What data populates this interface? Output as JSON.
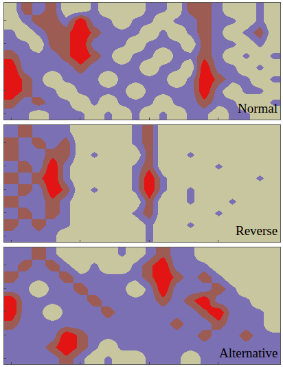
{
  "chart_data": [
    {
      "type": "heatmap",
      "annotations": [
        "Normal"
      ],
      "tick_labels": false,
      "colors": [
        "#c8c69e",
        "#7b70b4",
        "#9c5c54",
        "#e21414"
      ],
      "xlim": [
        -0.5,
        19.5
      ],
      "ylim": [
        -0.5,
        9.5
      ],
      "zlim": [
        0,
        3
      ],
      "x": [
        0,
        1,
        2,
        3,
        4,
        5,
        6,
        7,
        8,
        9,
        10,
        11,
        12,
        13,
        14,
        15,
        16,
        17,
        18,
        19
      ],
      "y": [
        9,
        8,
        7,
        6,
        5,
        4,
        3,
        2,
        1,
        0
      ],
      "cells": [
        [
          0,
          2,
          1,
          2,
          0,
          0,
          1,
          0,
          0,
          0,
          1,
          1,
          0,
          2,
          2,
          1,
          0,
          0,
          1,
          0
        ],
        [
          0,
          1,
          2,
          2,
          1,
          3,
          1,
          1,
          0,
          1,
          1,
          0,
          1,
          1,
          2,
          1,
          1,
          0,
          1,
          0
        ],
        [
          1,
          0,
          1,
          2,
          2,
          3,
          2,
          1,
          1,
          1,
          0,
          1,
          0,
          1,
          2,
          1,
          0,
          1,
          2,
          0
        ],
        [
          1,
          1,
          0,
          2,
          2,
          3,
          1,
          1,
          1,
          0,
          1,
          1,
          1,
          0,
          2,
          1,
          1,
          0,
          1,
          0
        ],
        [
          2,
          1,
          1,
          1,
          2,
          3,
          2,
          1,
          0,
          1,
          1,
          0,
          1,
          1,
          2,
          1,
          0,
          1,
          0,
          1
        ],
        [
          3,
          1,
          1,
          1,
          1,
          2,
          1,
          1,
          1,
          1,
          0,
          1,
          1,
          0,
          3,
          1,
          1,
          0,
          1,
          0
        ],
        [
          3,
          2,
          1,
          0,
          1,
          1,
          1,
          0,
          1,
          1,
          1,
          1,
          0,
          1,
          3,
          2,
          1,
          1,
          0,
          1
        ],
        [
          3,
          2,
          1,
          1,
          0,
          1,
          1,
          1,
          1,
          0,
          1,
          1,
          1,
          1,
          3,
          1,
          0,
          1,
          1,
          0
        ],
        [
          2,
          1,
          2,
          1,
          1,
          0,
          1,
          0,
          1,
          1,
          1,
          0,
          1,
          1,
          2,
          1,
          1,
          0,
          0,
          1
        ],
        [
          1,
          1,
          0,
          1,
          1,
          1,
          0,
          1,
          0,
          1,
          0,
          1,
          0,
          1,
          1,
          0,
          1,
          1,
          0,
          0
        ]
      ]
    },
    {
      "type": "heatmap",
      "annotations": [
        "Reverse"
      ],
      "tick_labels": false,
      "colors": [
        "#c8c69e",
        "#7b70b4",
        "#9c5c54",
        "#e21414"
      ],
      "xlim": [
        -0.5,
        19.5
      ],
      "ylim": [
        -0.5,
        9.5
      ],
      "zlim": [
        0,
        3
      ],
      "x": [
        0,
        1,
        2,
        3,
        4,
        5,
        6,
        7,
        8,
        9,
        10,
        11,
        12,
        13,
        14,
        15,
        16,
        17,
        18,
        19
      ],
      "y": [
        9,
        8,
        7,
        6,
        5,
        4,
        3,
        2,
        1,
        0
      ],
      "cells": [
        [
          1,
          2,
          1,
          1,
          1,
          0,
          0,
          0,
          0,
          1,
          2,
          0,
          0,
          0,
          0,
          0,
          0,
          0,
          0,
          0
        ],
        [
          2,
          1,
          2,
          1,
          2,
          0,
          0,
          0,
          0,
          1,
          2,
          0,
          0,
          0,
          0,
          0,
          0,
          0,
          0,
          0
        ],
        [
          2,
          1,
          1,
          2,
          2,
          0,
          1,
          0,
          0,
          0,
          2,
          0,
          0,
          1,
          0,
          0,
          0,
          0,
          0,
          0
        ],
        [
          1,
          2,
          1,
          3,
          1,
          0,
          0,
          0,
          0,
          1,
          2,
          0,
          0,
          0,
          0,
          1,
          0,
          0,
          0,
          0
        ],
        [
          2,
          1,
          2,
          3,
          1,
          0,
          0,
          0,
          0,
          1,
          3,
          1,
          0,
          0,
          0,
          0,
          0,
          0,
          1,
          0
        ],
        [
          1,
          2,
          1,
          3,
          2,
          0,
          1,
          0,
          0,
          1,
          3,
          1,
          0,
          1,
          0,
          0,
          0,
          0,
          0,
          0
        ],
        [
          2,
          1,
          1,
          2,
          1,
          0,
          0,
          0,
          0,
          0,
          2,
          0,
          0,
          1,
          0,
          0,
          1,
          0,
          0,
          0
        ],
        [
          1,
          2,
          1,
          2,
          1,
          0,
          0,
          0,
          0,
          1,
          2,
          0,
          0,
          0,
          0,
          1,
          0,
          0,
          0,
          0
        ],
        [
          2,
          1,
          2,
          1,
          1,
          0,
          0,
          0,
          0,
          0,
          1,
          0,
          0,
          1,
          0,
          0,
          0,
          0,
          0,
          0
        ],
        [
          1,
          1,
          1,
          1,
          0,
          0,
          0,
          0,
          0,
          0,
          1,
          0,
          0,
          0,
          0,
          0,
          0,
          0,
          0,
          0
        ]
      ]
    },
    {
      "type": "heatmap",
      "annotations": [
        "Alternative"
      ],
      "tick_labels": false,
      "colors": [
        "#c8c69e",
        "#7b70b4",
        "#9c5c54",
        "#e21414"
      ],
      "xlim": [
        -0.5,
        19.5
      ],
      "ylim": [
        -0.5,
        9.5
      ],
      "zlim": [
        0,
        3
      ],
      "x": [
        0,
        1,
        2,
        3,
        4,
        5,
        6,
        7,
        8,
        9,
        10,
        11,
        12,
        13,
        14,
        15,
        16,
        17,
        18,
        19
      ],
      "y": [
        9,
        8,
        7,
        6,
        5,
        4,
        3,
        2,
        1,
        0
      ],
      "cells": [
        [
          1,
          1,
          2,
          1,
          0,
          0,
          0,
          0,
          1,
          0,
          1,
          2,
          1,
          1,
          0,
          0,
          0,
          0,
          0,
          0
        ],
        [
          1,
          2,
          1,
          2,
          1,
          0,
          1,
          0,
          0,
          1,
          2,
          3,
          1,
          1,
          1,
          0,
          0,
          0,
          0,
          0
        ],
        [
          2,
          1,
          1,
          1,
          2,
          1,
          1,
          1,
          1,
          1,
          2,
          3,
          2,
          1,
          2,
          1,
          0,
          0,
          0,
          0
        ],
        [
          1,
          1,
          0,
          1,
          1,
          2,
          1,
          1,
          1,
          0,
          1,
          3,
          1,
          1,
          1,
          2,
          1,
          0,
          0,
          0
        ],
        [
          3,
          1,
          1,
          1,
          1,
          1,
          2,
          1,
          1,
          1,
          1,
          2,
          1,
          2,
          3,
          1,
          1,
          1,
          0,
          0
        ],
        [
          3,
          1,
          1,
          0,
          1,
          1,
          1,
          2,
          1,
          1,
          1,
          1,
          1,
          1,
          2,
          3,
          1,
          1,
          1,
          0
        ],
        [
          2,
          1,
          1,
          1,
          1,
          1,
          1,
          1,
          1,
          1,
          1,
          1,
          2,
          1,
          1,
          2,
          1,
          1,
          1,
          0
        ],
        [
          1,
          1,
          1,
          1,
          3,
          2,
          1,
          1,
          1,
          1,
          1,
          1,
          1,
          1,
          2,
          1,
          1,
          2,
          1,
          1
        ],
        [
          1,
          1,
          1,
          2,
          3,
          2,
          1,
          0,
          1,
          1,
          1,
          1,
          1,
          1,
          1,
          1,
          1,
          1,
          1,
          1
        ],
        [
          1,
          1,
          1,
          1,
          2,
          1,
          0,
          1,
          0,
          0,
          1,
          1,
          1,
          0,
          1,
          1,
          1,
          1,
          1,
          1
        ]
      ]
    }
  ]
}
